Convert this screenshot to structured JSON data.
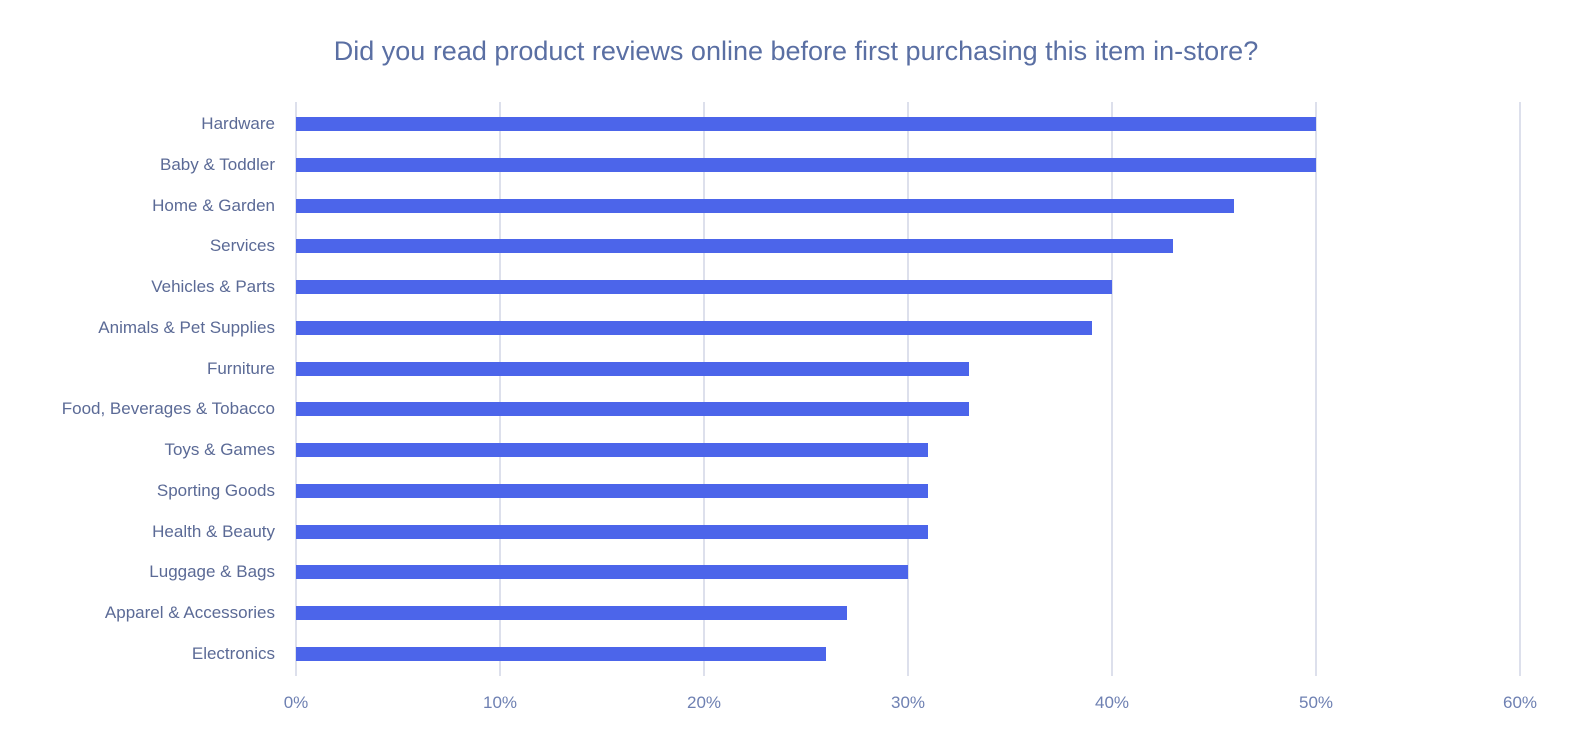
{
  "title": "Did you read product reviews online before first purchasing this item in-store?",
  "colors": {
    "bar": "#4c65ea",
    "grid": "#dde0ec",
    "text": "#5b6a96"
  },
  "chart_data": {
    "type": "bar",
    "orientation": "horizontal",
    "title": "Did you read product reviews online before first purchasing this item in-store?",
    "xlabel": "",
    "ylabel": "",
    "xlim": [
      0,
      60
    ],
    "x_ticks": [
      "0%",
      "10%",
      "20%",
      "30%",
      "40%",
      "50%",
      "60%"
    ],
    "grid": true,
    "legend": "none",
    "categories": [
      "Hardware",
      "Baby & Toddler",
      "Home & Garden",
      "Services",
      "Vehicles & Parts",
      "Animals & Pet Supplies",
      "Furniture",
      "Food, Beverages & Tobacco",
      "Toys & Games",
      "Sporting Goods",
      "Health & Beauty",
      "Luggage & Bags",
      "Apparel & Accessories",
      "Electronics"
    ],
    "values": [
      50,
      50,
      46,
      43,
      40,
      39,
      33,
      33,
      31,
      31,
      31,
      30,
      27,
      26
    ],
    "unit": "%"
  }
}
